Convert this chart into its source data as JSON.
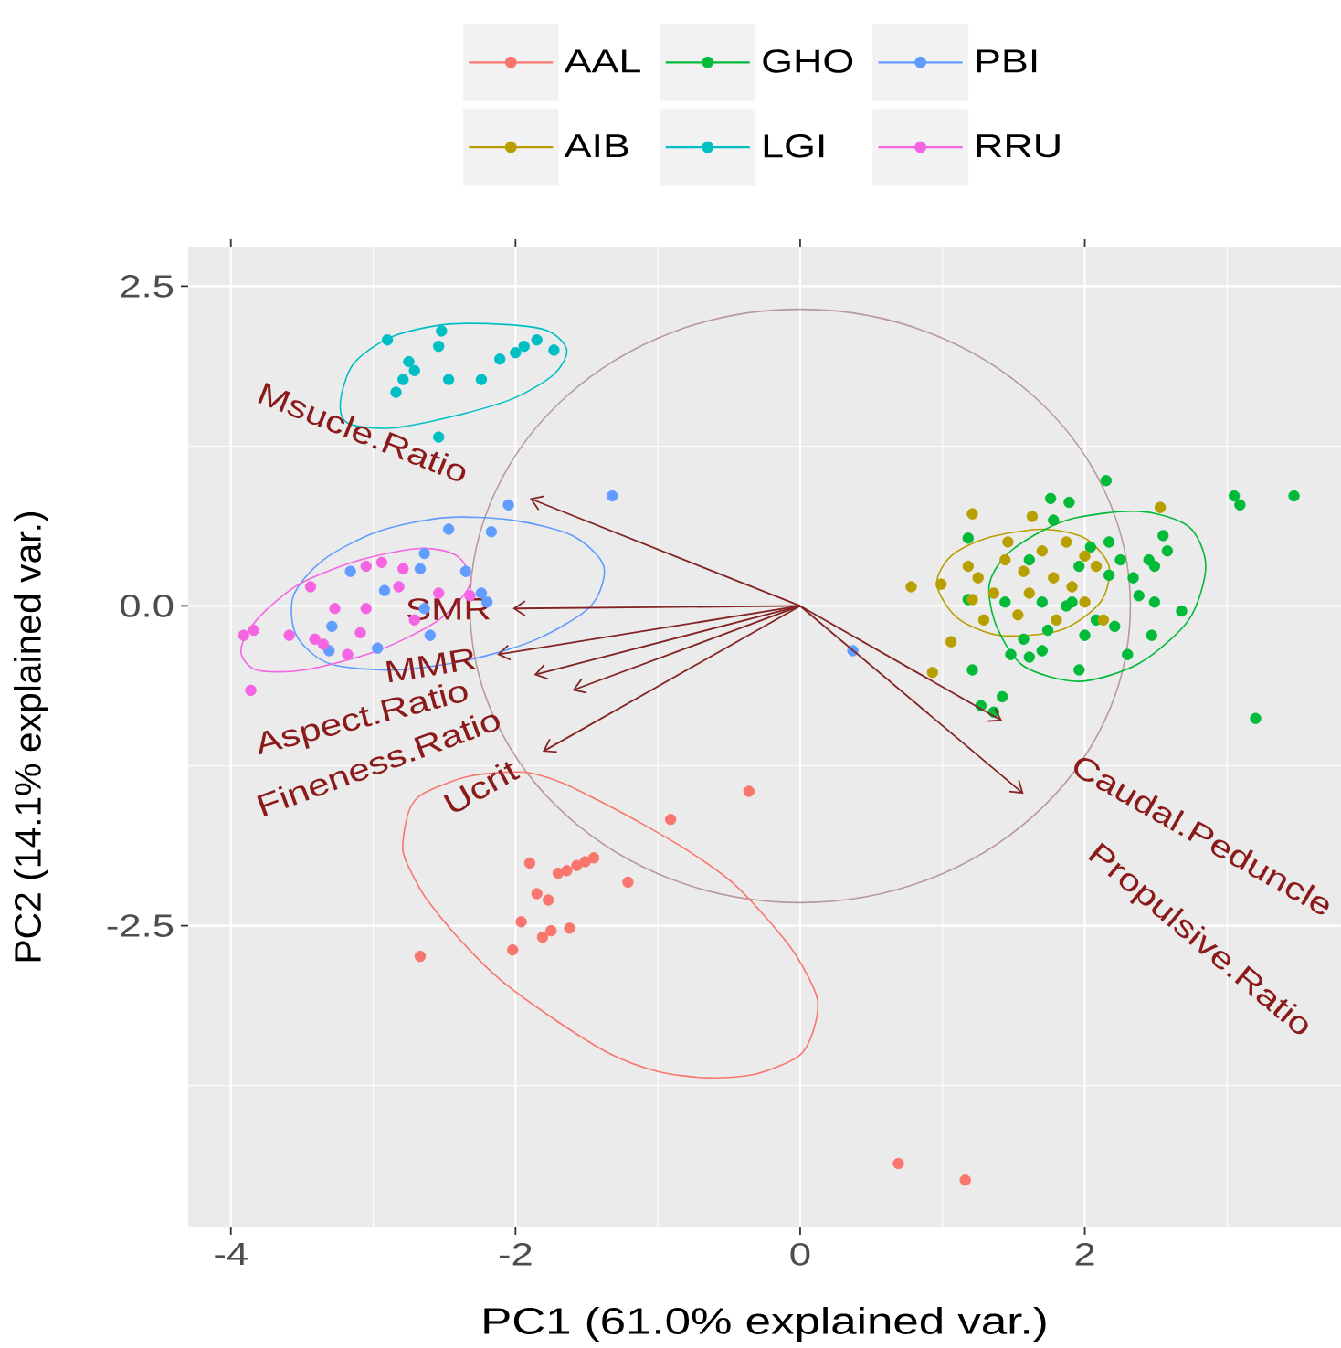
{
  "chart_data": {
    "type": "scatter",
    "xlabel": "PC1 (61.0% explained var.)",
    "ylabel": "PC2 (14.1% explained var.)",
    "xlim": [
      -4.3,
      3.8
    ],
    "ylim": [
      -4.86,
      2.81
    ],
    "xticks": [
      -4,
      -2,
      0,
      2
    ],
    "yticks": [
      -2.5,
      {
        "value": 0,
        "label": "0.0"
      },
      2.5
    ],
    "grid": true,
    "legend": "top",
    "marker": "circle",
    "annotations": [
      "Msucle.Ratio",
      "SMR",
      "MMR",
      "Aspect.Ratio",
      "Fineness.Ratio",
      "Ucrit",
      "Caudal.Peduncle",
      "Propulsive.Ratio"
    ],
    "series": [
      {
        "name": "AAL",
        "color": "#f8766d",
        "x": [
          -1.9,
          -1.7,
          -1.64,
          -1.57,
          -1.51,
          -1.45,
          -1.85,
          -1.77,
          -1.21,
          -1.96,
          -1.81,
          -1.75,
          -1.62,
          -2.02,
          -2.67,
          -0.91,
          -0.36,
          0.69,
          1.16
        ],
        "values": [
          -2.01,
          -2.09,
          -2.07,
          -2.03,
          -2.0,
          -1.97,
          -2.25,
          -2.3,
          -2.16,
          -2.47,
          -2.59,
          -2.54,
          -2.52,
          -2.69,
          -2.74,
          -1.67,
          -1.45,
          -4.36,
          -4.49
        ]
      },
      {
        "name": "AIB",
        "color": "#b79f00",
        "x": [
          1.21,
          0.78,
          0.99,
          1.06,
          0.93,
          1.63,
          2.53,
          1.18,
          1.25,
          1.21,
          1.29,
          1.46,
          1.44,
          1.57,
          1.61,
          1.53,
          1.7,
          1.78,
          1.87,
          2.0,
          2.08,
          1.91,
          2.13,
          1.36,
          1.8,
          2.0
        ],
        "values": [
          0.72,
          0.15,
          0.17,
          -0.28,
          -0.52,
          0.7,
          0.77,
          0.31,
          0.22,
          0.05,
          -0.11,
          0.5,
          0.36,
          0.27,
          0.1,
          -0.07,
          0.43,
          0.22,
          0.5,
          0.39,
          0.31,
          0.15,
          -0.11,
          0.1,
          -0.11,
          0.03
        ]
      },
      {
        "name": "GHO",
        "color": "#00ba38",
        "x": [
          2.15,
          1.76,
          1.89,
          3.05,
          3.09,
          3.47,
          1.18,
          1.18,
          1.21,
          1.42,
          1.27,
          1.36,
          3.2,
          2.55,
          2.58,
          2.45,
          2.49,
          2.34,
          2.38,
          2.49,
          2.68,
          2.47,
          2.3,
          1.96,
          2.0,
          1.7,
          1.61,
          1.48,
          1.74,
          2.21,
          2.25,
          2.17,
          1.87,
          1.7,
          1.44,
          1.61,
          1.78,
          1.96,
          2.04,
          2.17,
          1.57,
          2.08,
          1.91
        ],
        "values": [
          0.98,
          0.84,
          0.81,
          0.86,
          0.79,
          0.86,
          0.53,
          0.05,
          -0.5,
          -0.71,
          -0.78,
          -0.83,
          -0.88,
          0.55,
          0.43,
          0.36,
          0.31,
          0.22,
          0.08,
          0.03,
          -0.04,
          -0.23,
          -0.38,
          -0.5,
          -0.23,
          -0.35,
          -0.4,
          -0.38,
          -0.19,
          -0.16,
          0.36,
          0.5,
          0.0,
          0.03,
          0.03,
          0.36,
          0.67,
          0.31,
          0.46,
          0.24,
          -0.26,
          -0.11,
          0.03
        ]
      },
      {
        "name": "LGI",
        "color": "#00bfc4",
        "x": [
          -2.9,
          -2.52,
          -2.54,
          -2.75,
          -2.71,
          -2.79,
          -2.84,
          -2.47,
          -2.24,
          -2.11,
          -2.0,
          -1.85,
          -1.73,
          -2.54,
          -1.94
        ],
        "values": [
          2.08,
          2.15,
          2.03,
          1.91,
          1.84,
          1.77,
          1.67,
          1.77,
          1.77,
          1.93,
          1.98,
          2.08,
          2.0,
          1.32,
          2.03
        ]
      },
      {
        "name": "PBI",
        "color": "#619cff",
        "x": [
          -2.05,
          -2.17,
          -2.47,
          -2.64,
          -2.67,
          -2.35,
          -2.24,
          -3.16,
          -3.29,
          -2.6,
          -2.97,
          -3.31,
          -2.92,
          -2.64,
          -2.2,
          -1.32,
          0.37
        ],
        "values": [
          0.79,
          0.58,
          0.6,
          0.41,
          0.29,
          0.27,
          0.1,
          0.27,
          -0.16,
          -0.23,
          -0.33,
          -0.35,
          0.12,
          -0.02,
          0.03,
          0.86,
          -0.35
        ]
      },
      {
        "name": "RRU",
        "color": "#f564e3",
        "x": [
          -3.91,
          -3.84,
          -3.86,
          -3.59,
          -3.44,
          -3.27,
          -3.05,
          -2.94,
          -2.79,
          -2.82,
          -2.54,
          -3.35,
          -3.18,
          -3.41,
          -3.09,
          -2.71,
          -2.32,
          -3.05
        ],
        "values": [
          -0.23,
          -0.19,
          -0.66,
          -0.23,
          0.15,
          -0.02,
          -0.02,
          0.34,
          0.29,
          0.15,
          0.1,
          -0.3,
          -0.38,
          -0.26,
          -0.21,
          -0.11,
          0.08,
          0.31
        ]
      }
    ]
  }
}
